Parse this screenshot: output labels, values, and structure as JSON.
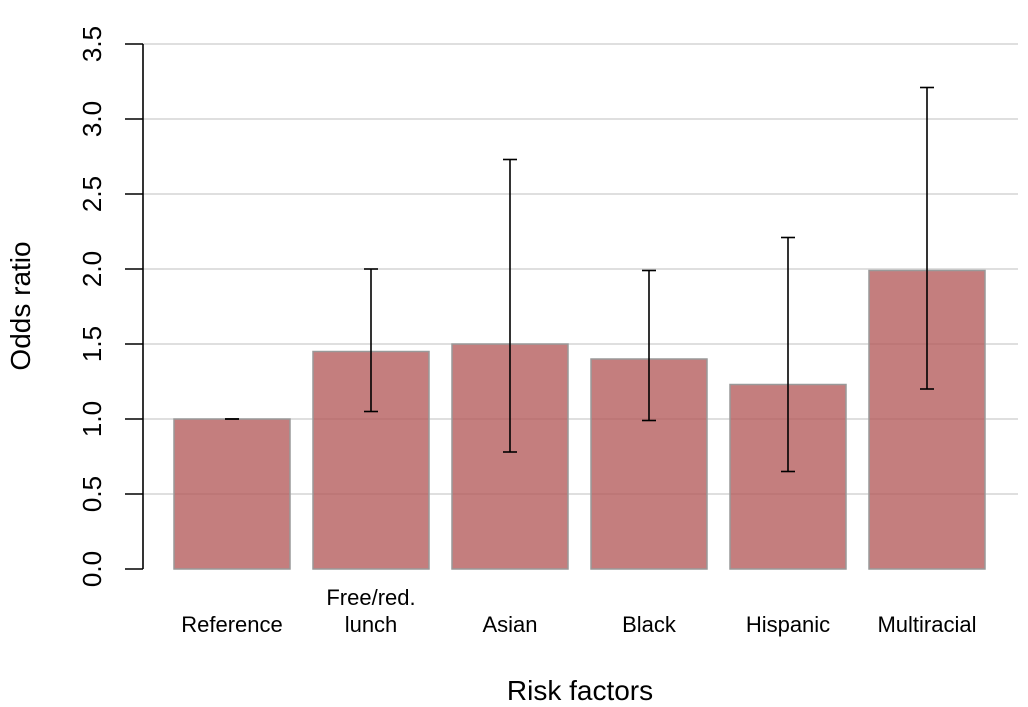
{
  "chart_data": {
    "type": "bar",
    "title": "",
    "xlabel": "Risk factors",
    "ylabel": "Odds ratio",
    "categories": [
      [
        "Reference"
      ],
      [
        "Free/red.",
        "lunch"
      ],
      [
        "Asian"
      ],
      [
        "Black"
      ],
      [
        "Hispanic"
      ],
      [
        "Multiracial"
      ]
    ],
    "values": [
      1.0,
      1.45,
      1.5,
      1.4,
      1.23,
      1.99
    ],
    "ci_lower": [
      1.0,
      1.05,
      0.78,
      0.99,
      0.65,
      1.2
    ],
    "ci_upper": [
      1.0,
      2.0,
      2.73,
      1.99,
      2.21,
      3.21
    ],
    "ylim": [
      0,
      3.5
    ],
    "yticks": [
      "0.0",
      "0.5",
      "1.0",
      "1.5",
      "2.0",
      "2.5",
      "3.0",
      "3.5"
    ],
    "grid": true,
    "colors": {
      "bar": "#b35a5a",
      "bar_stroke": "#999999",
      "grid": "#cccccc"
    }
  }
}
